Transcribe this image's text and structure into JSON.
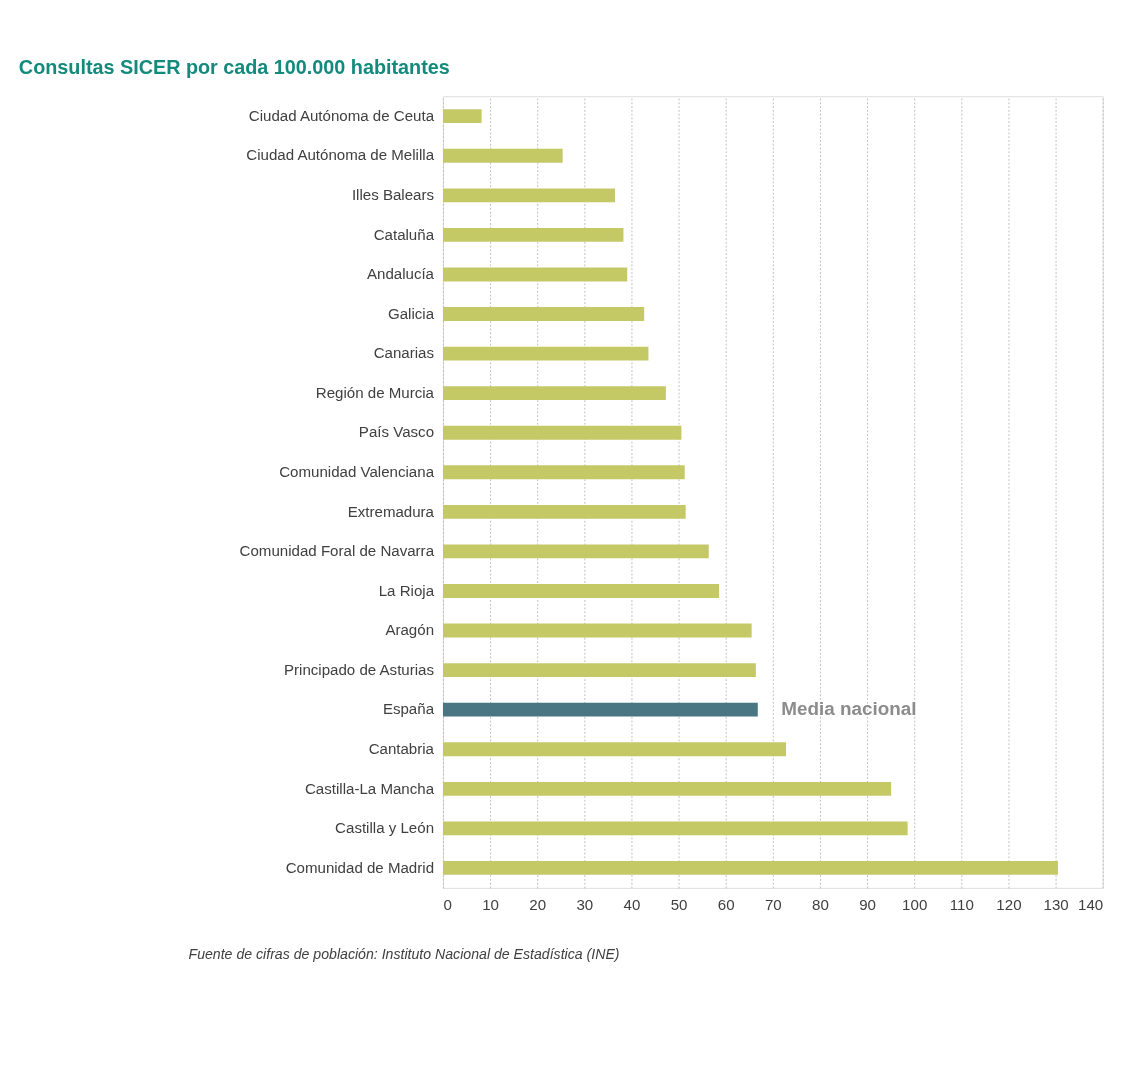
{
  "chart_data": {
    "type": "bar",
    "orientation": "horizontal",
    "title": "Consultas SICER por cada 100.000 habitantes",
    "categories": [
      "Ciudad Autónoma de Ceuta",
      "Ciudad Autónoma de Melilla",
      "Illes Balears",
      "Cataluña",
      "Andalucía",
      "Galicia",
      "Canarias",
      "Región de Murcia",
      "País Vasco",
      "Comunidad Valenciana",
      "Extremadura",
      "Comunidad Foral de Navarra",
      "La Rioja",
      "Aragón",
      "Principado de Asturias",
      "España",
      "Cantabria",
      "Castilla-La Mancha",
      "Castilla y León",
      "Comunidad de Madrid"
    ],
    "values": [
      8.2,
      25.4,
      36.5,
      38.3,
      39.1,
      42.7,
      43.6,
      47.3,
      50.6,
      51.3,
      51.5,
      56.4,
      58.6,
      65.5,
      66.4,
      66.8,
      72.8,
      95.1,
      98.6,
      130.5
    ],
    "colors": [
      "#c4c966",
      "#c4c966",
      "#c4c966",
      "#c4c966",
      "#c4c966",
      "#c4c966",
      "#c4c966",
      "#c4c966",
      "#c4c966",
      "#c4c966",
      "#c4c966",
      "#c4c966",
      "#c4c966",
      "#c4c966",
      "#c4c966",
      "#4a7583",
      "#c4c966",
      "#c4c966",
      "#c4c966",
      "#c4c966"
    ],
    "xlim": [
      0,
      140
    ],
    "xticks": [
      0,
      10,
      20,
      30,
      40,
      50,
      60,
      70,
      80,
      90,
      100,
      110,
      120,
      130,
      140
    ],
    "grid": "x",
    "annotations": [
      {
        "text": "Media nacional",
        "x": 66.8,
        "y": "España"
      },
      "Fuente de cifras de población: Instituto Nacional de Estadística (INE)"
    ]
  }
}
